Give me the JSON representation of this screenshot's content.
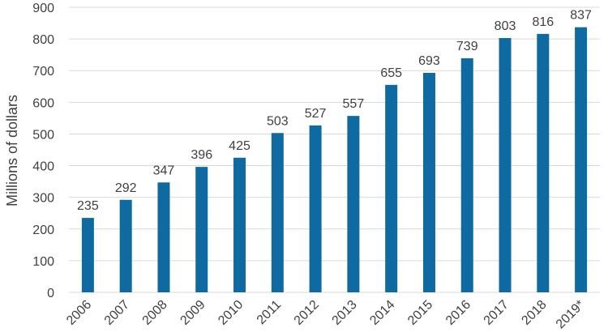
{
  "chart_data": {
    "type": "bar",
    "categories": [
      "2006",
      "2007",
      "2008",
      "2009",
      "2010",
      "2011",
      "2012",
      "2013",
      "2014",
      "2015",
      "2016",
      "2017",
      "2018",
      "2019*"
    ],
    "values": [
      235,
      292,
      347,
      396,
      425,
      503,
      527,
      557,
      655,
      693,
      739,
      803,
      816,
      837
    ],
    "title": "",
    "xlabel": "",
    "ylabel": "Millions of dollars",
    "ylim": [
      0,
      900
    ],
    "yticks": [
      0,
      100,
      200,
      300,
      400,
      500,
      600,
      700,
      800,
      900
    ],
    "grid": true,
    "bar_color": "#0e6aa0",
    "grid_color": "#d9d9d9",
    "data_labels": true,
    "x_tick_rotation": -45
  }
}
